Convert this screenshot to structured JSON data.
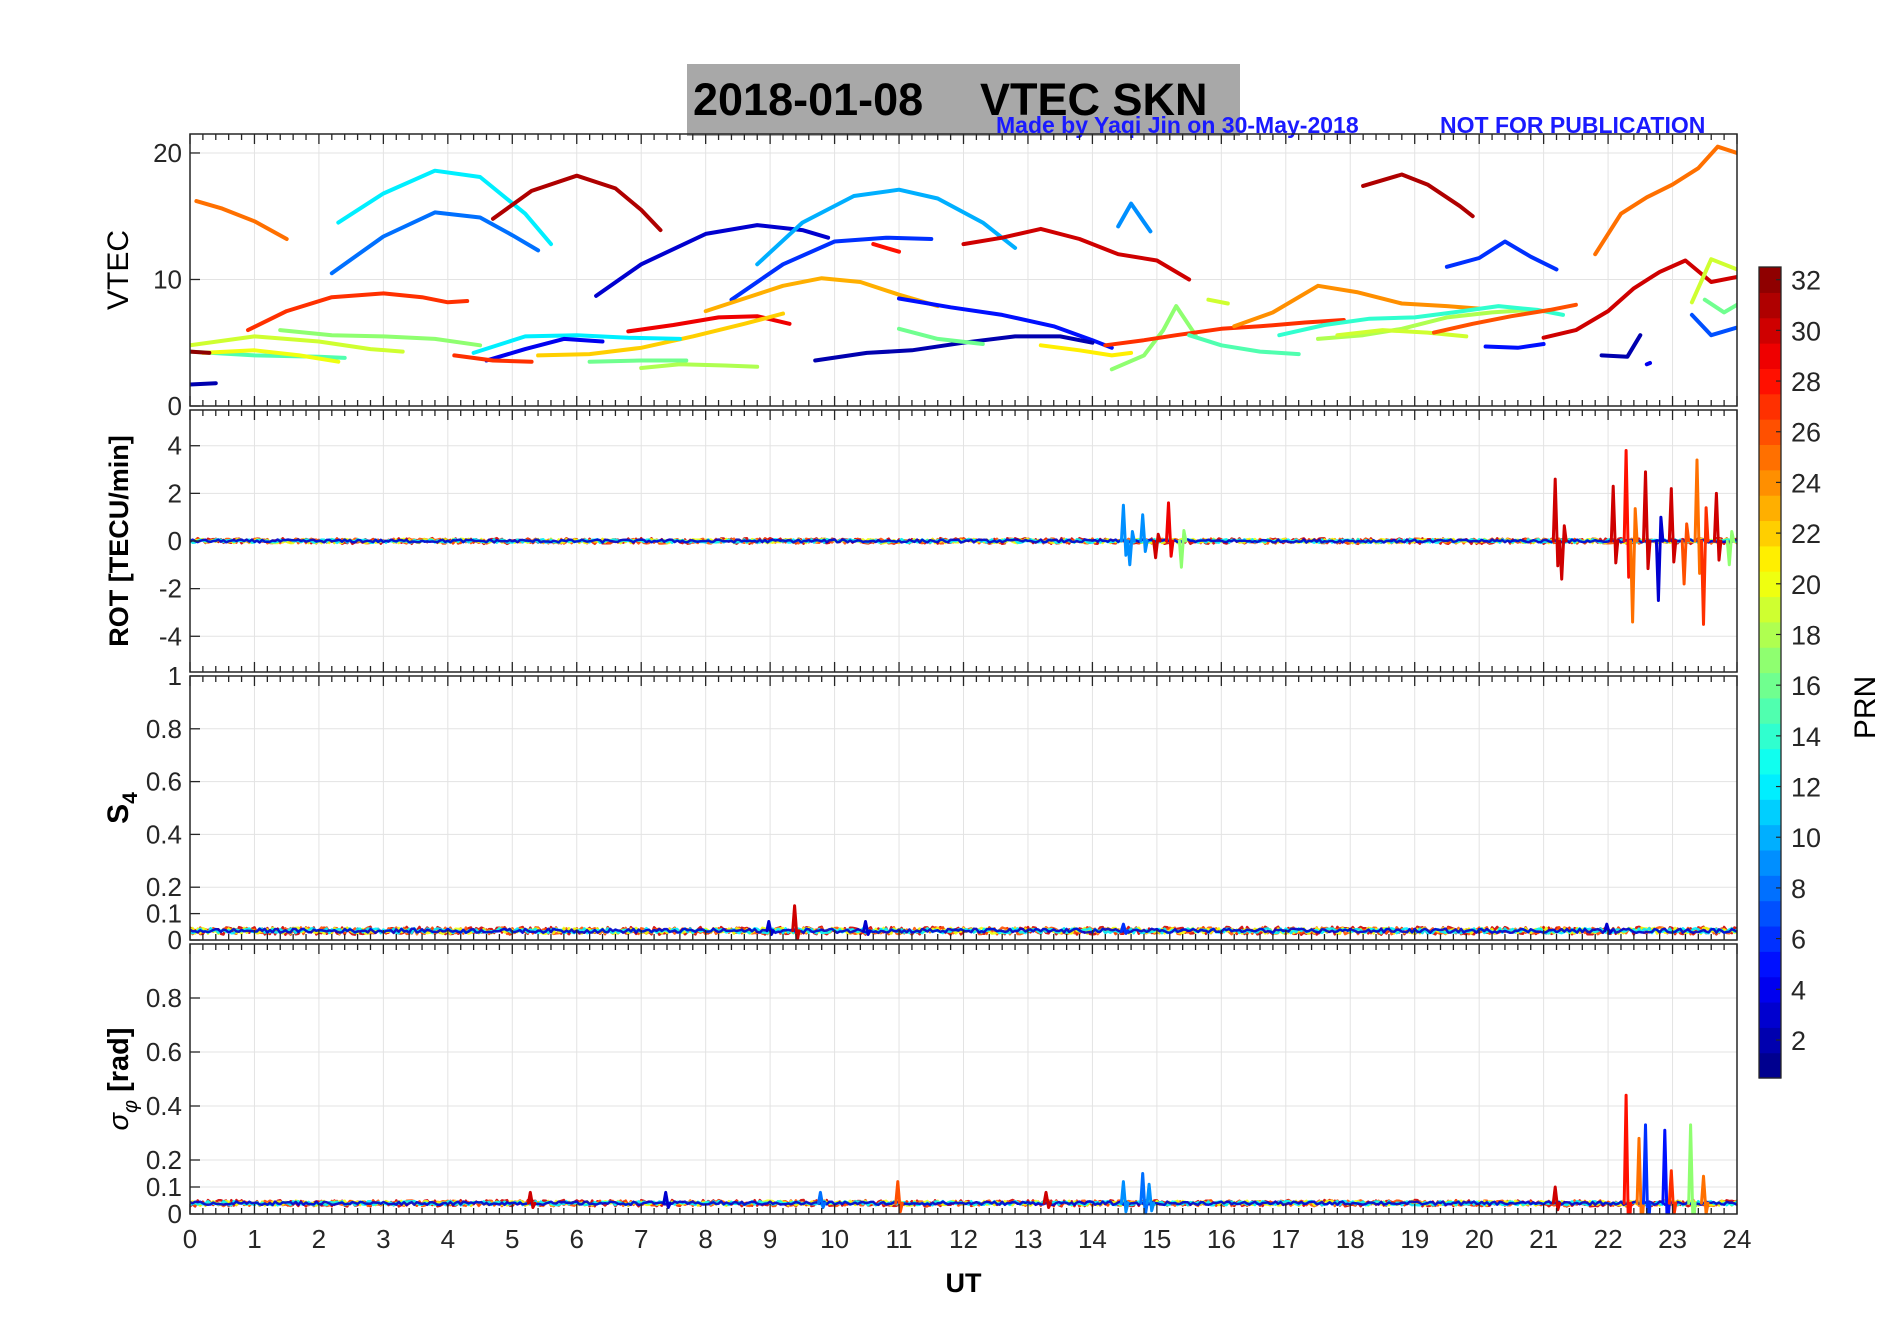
{
  "figure": {
    "title_date": "2018-01-08",
    "title_kind": "VTEC  SKN",
    "credit": "Made by Yaqi Jin on 30-May-2018",
    "notice": "NOT FOR PUBLICATION",
    "credit_color": "#1a1aff",
    "title_bg": "#a8a8a8"
  },
  "chart_data": [
    {
      "type": "line",
      "panel": "vtec",
      "ylabel": "VTEC",
      "ylim": [
        0,
        21.5
      ],
      "yticks": [
        "0",
        "10",
        "20"
      ],
      "ytick_values": [
        0,
        10,
        20
      ],
      "grid": true,
      "series": [
        {
          "prn": 25,
          "x": [
            0.1,
            0.5,
            1.0,
            1.5
          ],
          "y": [
            16.2,
            15.6,
            14.6,
            13.2
          ]
        },
        {
          "prn": 27,
          "x": [
            0.9,
            1.5,
            2.2,
            3.0,
            3.6,
            4.0,
            4.3
          ],
          "y": [
            6.0,
            7.5,
            8.6,
            8.9,
            8.6,
            8.2,
            8.3
          ]
        },
        {
          "prn": 12,
          "x": [
            2.3,
            3.0,
            3.8,
            4.5,
            5.2,
            5.6
          ],
          "y": [
            14.5,
            16.8,
            18.6,
            18.1,
            15.2,
            12.8
          ]
        },
        {
          "prn": 8,
          "x": [
            2.2,
            3.0,
            3.8,
            4.5,
            5.0,
            5.4
          ],
          "y": [
            10.5,
            13.4,
            15.3,
            14.9,
            13.5,
            12.3
          ]
        },
        {
          "prn": 31,
          "x": [
            4.7,
            5.3,
            6.0,
            6.6,
            7.0,
            7.3
          ],
          "y": [
            14.8,
            17.0,
            18.2,
            17.2,
            15.5,
            13.9
          ]
        },
        {
          "prn": 3,
          "x": [
            6.3,
            7.0,
            8.0,
            8.8,
            9.5,
            9.9
          ],
          "y": [
            8.7,
            11.2,
            13.6,
            14.3,
            13.9,
            13.3
          ]
        },
        {
          "prn": 6,
          "x": [
            8.4,
            9.2,
            10.0,
            10.8,
            11.5
          ],
          "y": [
            8.4,
            11.2,
            13.0,
            13.3,
            13.2
          ]
        },
        {
          "prn": 10,
          "x": [
            8.8,
            9.5,
            10.3,
            11.0,
            11.6,
            12.3,
            12.8
          ],
          "y": [
            11.2,
            14.5,
            16.6,
            17.1,
            16.4,
            14.5,
            12.5
          ]
        },
        {
          "prn": 28,
          "x": [
            10.6,
            11.0
          ],
          "y": [
            12.8,
            12.2
          ]
        },
        {
          "prn": 30,
          "x": [
            12.0,
            12.6,
            13.2,
            13.8,
            14.4,
            15.0,
            15.5
          ],
          "y": [
            12.8,
            13.3,
            14.0,
            13.2,
            12.0,
            11.5,
            10.0
          ]
        },
        {
          "prn": 9,
          "x": [
            14.4,
            14.6,
            14.9
          ],
          "y": [
            14.2,
            16.0,
            13.8
          ]
        },
        {
          "prn": 31,
          "x": [
            18.2,
            18.8,
            19.2,
            19.7,
            19.9
          ],
          "y": [
            17.4,
            18.3,
            17.5,
            15.8,
            15.0
          ]
        },
        {
          "prn": 6,
          "x": [
            19.5,
            20.0,
            20.4,
            20.8,
            21.2
          ],
          "y": [
            11.0,
            11.7,
            13.0,
            11.8,
            10.8
          ]
        },
        {
          "prn": 25,
          "x": [
            21.8,
            22.2,
            22.6,
            23.0,
            23.4,
            23.7,
            24.0
          ],
          "y": [
            12.0,
            15.2,
            16.5,
            17.5,
            18.8,
            20.5,
            20.0
          ]
        },
        {
          "prn": 30,
          "x": [
            21.0,
            21.5,
            22.0,
            22.4,
            22.8,
            23.2,
            23.6,
            24.0
          ],
          "y": [
            5.4,
            6.0,
            7.5,
            9.3,
            10.6,
            11.5,
            9.8,
            10.2
          ]
        },
        {
          "prn": 23,
          "x": [
            8.0,
            8.6,
            9.2,
            9.8,
            10.4,
            11.0,
            11.6
          ],
          "y": [
            7.5,
            8.5,
            9.5,
            10.1,
            9.8,
            8.8,
            7.9
          ]
        },
        {
          "prn": 5,
          "x": [
            11.0,
            11.8,
            12.6,
            13.4,
            14.0,
            14.3
          ],
          "y": [
            8.5,
            7.8,
            7.2,
            6.3,
            5.2,
            4.6
          ]
        },
        {
          "prn": 29,
          "x": [
            6.8,
            7.5,
            8.2,
            8.8,
            9.3
          ],
          "y": [
            5.9,
            6.4,
            7.0,
            7.1,
            6.5
          ]
        },
        {
          "prn": 22,
          "x": [
            5.4,
            6.2,
            7.0,
            7.8,
            8.6,
            9.2
          ],
          "y": [
            4.0,
            4.1,
            4.6,
            5.5,
            6.5,
            7.3
          ]
        },
        {
          "prn": 2,
          "x": [
            9.7,
            10.5,
            11.2,
            12.0,
            12.8,
            13.5,
            14.0
          ],
          "y": [
            3.6,
            4.2,
            4.4,
            5.0,
            5.5,
            5.5,
            5.0
          ]
        },
        {
          "prn": 12,
          "x": [
            4.4,
            5.2,
            6.0,
            6.8,
            7.6
          ],
          "y": [
            4.2,
            5.5,
            5.6,
            5.4,
            5.3
          ]
        },
        {
          "prn": 19,
          "x": [
            0.0,
            1.0,
            2.0,
            2.8,
            3.3
          ],
          "y": [
            4.8,
            5.5,
            5.1,
            4.5,
            4.3
          ]
        },
        {
          "prn": 15,
          "x": [
            0.0,
            1.0,
            2.0,
            2.4
          ],
          "y": [
            4.3,
            4.0,
            3.9,
            3.8
          ]
        },
        {
          "prn": 20,
          "x": [
            0.2,
            1.0,
            1.7,
            2.3
          ],
          "y": [
            4.2,
            4.4,
            4.0,
            3.5
          ]
        },
        {
          "prn": 17,
          "x": [
            1.4,
            2.2,
            3.0,
            3.8,
            4.5
          ],
          "y": [
            6.0,
            5.6,
            5.5,
            5.3,
            4.8
          ]
        },
        {
          "prn": 4,
          "x": [
            4.6,
            5.2,
            5.8,
            6.4
          ],
          "y": [
            3.6,
            4.5,
            5.3,
            5.1
          ]
        },
        {
          "prn": 2,
          "x": [
            0.0,
            0.4
          ],
          "y": [
            1.7,
            1.8
          ]
        },
        {
          "prn": 32,
          "x": [
            0.0,
            0.3
          ],
          "y": [
            4.3,
            4.2
          ]
        },
        {
          "prn": 27,
          "x": [
            4.1,
            4.7,
            5.3
          ],
          "y": [
            4.0,
            3.6,
            3.5
          ]
        },
        {
          "prn": 18,
          "x": [
            7.0,
            7.6,
            8.3,
            8.8
          ],
          "y": [
            3.0,
            3.3,
            3.2,
            3.1
          ]
        },
        {
          "prn": 16,
          "x": [
            6.2,
            7.0,
            7.7
          ],
          "y": [
            3.5,
            3.6,
            3.6
          ]
        },
        {
          "prn": 16,
          "x": [
            11.0,
            11.6,
            12.3
          ],
          "y": [
            6.1,
            5.3,
            4.9
          ]
        },
        {
          "prn": 21,
          "x": [
            13.2,
            13.8,
            14.3,
            14.6
          ],
          "y": [
            4.8,
            4.4,
            4.0,
            4.2
          ]
        },
        {
          "prn": 17,
          "x": [
            14.3,
            14.8,
            15.1,
            15.3,
            15.6
          ],
          "y": [
            2.9,
            4.0,
            6.0,
            7.9,
            5.6
          ]
        },
        {
          "prn": 27,
          "x": [
            14.2,
            14.8,
            15.3,
            16.0,
            16.6,
            17.3,
            17.9
          ],
          "y": [
            4.8,
            5.2,
            5.6,
            6.1,
            6.3,
            6.6,
            6.8
          ]
        },
        {
          "prn": 15,
          "x": [
            15.5,
            16.0,
            16.6,
            17.2
          ],
          "y": [
            5.6,
            4.8,
            4.3,
            4.1
          ]
        },
        {
          "prn": 19,
          "x": [
            15.8,
            16.1
          ],
          "y": [
            8.4,
            8.1
          ]
        },
        {
          "prn": 24,
          "x": [
            16.2,
            16.8,
            17.5,
            18.1,
            18.8,
            19.5,
            20.0
          ],
          "y": [
            6.3,
            7.4,
            9.5,
            9.0,
            8.1,
            7.9,
            7.7
          ]
        },
        {
          "prn": 18,
          "x": [
            17.5,
            18.2,
            18.8,
            19.5,
            20.2,
            20.8
          ],
          "y": [
            5.3,
            5.6,
            6.1,
            7.0,
            7.4,
            7.6
          ]
        },
        {
          "prn": 14,
          "x": [
            16.9,
            17.6,
            18.3,
            19.0,
            19.6,
            20.3,
            20.9,
            21.3
          ],
          "y": [
            5.6,
            6.4,
            6.9,
            7.0,
            7.4,
            7.9,
            7.6,
            7.2
          ]
        },
        {
          "prn": 19,
          "x": [
            17.8,
            18.5,
            19.2,
            19.8
          ],
          "y": [
            5.6,
            6.0,
            5.8,
            5.5
          ]
        },
        {
          "prn": 26,
          "x": [
            19.3,
            19.9,
            20.5,
            21.1,
            21.5
          ],
          "y": [
            5.8,
            6.5,
            7.1,
            7.6,
            8.0
          ]
        },
        {
          "prn": 5,
          "x": [
            20.1,
            20.6,
            21.0
          ],
          "y": [
            4.7,
            4.6,
            4.9
          ]
        },
        {
          "prn": 2,
          "x": [
            21.9,
            22.3,
            22.5
          ],
          "y": [
            4.0,
            3.9,
            5.6
          ]
        },
        {
          "prn": 4,
          "x": [
            22.6,
            22.65
          ],
          "y": [
            3.3,
            3.4
          ]
        },
        {
          "prn": 7,
          "x": [
            23.3,
            23.6,
            24.0
          ],
          "y": [
            7.2,
            5.6,
            6.2
          ]
        },
        {
          "prn": 19,
          "x": [
            23.3,
            23.6,
            24.0
          ],
          "y": [
            8.2,
            11.6,
            10.8
          ]
        },
        {
          "prn": 16,
          "x": [
            23.5,
            23.8,
            24.0
          ],
          "y": [
            8.4,
            7.4,
            8.0
          ]
        }
      ]
    },
    {
      "type": "line",
      "panel": "rot",
      "ylabel": "ROT [TECU/min]",
      "ylim": [
        -5.5,
        5.5
      ],
      "yticks": [
        "-4",
        "-2",
        "0",
        "2",
        "4"
      ],
      "ytick_values": [
        -4,
        -2,
        0,
        2,
        4
      ],
      "grid": true,
      "baseline": 0,
      "noise": 0.12,
      "spikes": [
        {
          "x": 14.5,
          "y": 1.5,
          "prn": 9
        },
        {
          "x": 14.6,
          "y": -1.0,
          "prn": 9
        },
        {
          "x": 14.8,
          "y": 1.1,
          "prn": 9
        },
        {
          "x": 15.0,
          "y": -0.7,
          "prn": 30
        },
        {
          "x": 15.2,
          "y": 1.6,
          "prn": 29
        },
        {
          "x": 15.4,
          "y": -1.1,
          "prn": 17
        },
        {
          "x": 21.2,
          "y": 2.6,
          "prn": 30
        },
        {
          "x": 21.3,
          "y": -1.6,
          "prn": 30
        },
        {
          "x": 22.1,
          "y": 2.3,
          "prn": 30
        },
        {
          "x": 22.3,
          "y": 3.8,
          "prn": 28
        },
        {
          "x": 22.4,
          "y": -3.4,
          "prn": 25
        },
        {
          "x": 22.6,
          "y": 2.9,
          "prn": 30
        },
        {
          "x": 22.8,
          "y": -2.5,
          "prn": 3
        },
        {
          "x": 23.0,
          "y": 2.2,
          "prn": 30
        },
        {
          "x": 23.2,
          "y": -1.8,
          "prn": 26
        },
        {
          "x": 23.4,
          "y": 3.4,
          "prn": 25
        },
        {
          "x": 23.5,
          "y": -3.5,
          "prn": 27
        },
        {
          "x": 23.7,
          "y": 2.0,
          "prn": 30
        },
        {
          "x": 23.9,
          "y": -1.0,
          "prn": 17
        }
      ]
    },
    {
      "type": "line",
      "panel": "s4",
      "ylabel": "S4",
      "ylim": [
        0,
        1.0
      ],
      "yticks": [
        "0",
        "0.1",
        "0.2",
        "0.4",
        "0.6",
        "0.8",
        "1"
      ],
      "ytick_values": [
        0,
        0.1,
        0.2,
        0.4,
        0.6,
        0.8,
        1.0
      ],
      "grid": true,
      "baseline": 0.035,
      "noise": 0.015,
      "spikes": [
        {
          "x": 9.4,
          "y": 0.13,
          "prn": 30
        },
        {
          "x": 9.0,
          "y": 0.07,
          "prn": 3
        },
        {
          "x": 10.5,
          "y": 0.07,
          "prn": 3
        },
        {
          "x": 14.5,
          "y": 0.06,
          "prn": 6
        },
        {
          "x": 22.0,
          "y": 0.06,
          "prn": 3
        }
      ]
    },
    {
      "type": "line",
      "panel": "sigma_phi",
      "ylabel": "σφ [rad]",
      "ylim": [
        0,
        1.0
      ],
      "yticks": [
        "0",
        "0.1",
        "0.2",
        "0.4",
        "0.6",
        "0.8"
      ],
      "ytick_values": [
        0,
        0.1,
        0.2,
        0.4,
        0.6,
        0.8
      ],
      "grid": true,
      "baseline": 0.04,
      "noise": 0.012,
      "spikes": [
        {
          "x": 5.3,
          "y": 0.08,
          "prn": 30
        },
        {
          "x": 7.4,
          "y": 0.08,
          "prn": 3
        },
        {
          "x": 9.8,
          "y": 0.08,
          "prn": 8
        },
        {
          "x": 11.0,
          "y": 0.12,
          "prn": 26
        },
        {
          "x": 13.3,
          "y": 0.08,
          "prn": 30
        },
        {
          "x": 14.5,
          "y": 0.12,
          "prn": 9
        },
        {
          "x": 14.8,
          "y": 0.15,
          "prn": 8
        },
        {
          "x": 14.9,
          "y": 0.11,
          "prn": 9
        },
        {
          "x": 21.2,
          "y": 0.1,
          "prn": 30
        },
        {
          "x": 22.3,
          "y": 0.44,
          "prn": 28
        },
        {
          "x": 22.5,
          "y": 0.28,
          "prn": 25
        },
        {
          "x": 22.6,
          "y": 0.33,
          "prn": 6
        },
        {
          "x": 22.9,
          "y": 0.31,
          "prn": 5
        },
        {
          "x": 23.0,
          "y": 0.16,
          "prn": 27
        },
        {
          "x": 23.3,
          "y": 0.33,
          "prn": 17
        },
        {
          "x": 23.5,
          "y": 0.14,
          "prn": 25
        }
      ]
    }
  ],
  "axes": {
    "xlabel": "UT",
    "xlim": [
      0,
      24
    ],
    "xticks": [
      "0",
      "1",
      "2",
      "3",
      "4",
      "5",
      "6",
      "7",
      "8",
      "9",
      "10",
      "11",
      "12",
      "13",
      "14",
      "15",
      "16",
      "17",
      "18",
      "19",
      "20",
      "21",
      "22",
      "23",
      "24"
    ],
    "xtick_values": [
      0,
      1,
      2,
      3,
      4,
      5,
      6,
      7,
      8,
      9,
      10,
      11,
      12,
      13,
      14,
      15,
      16,
      17,
      18,
      19,
      20,
      21,
      22,
      23,
      24
    ]
  },
  "colorbar": {
    "label": "PRN",
    "range": [
      1,
      32
    ],
    "ticks": [
      "2",
      "4",
      "6",
      "8",
      "10",
      "12",
      "14",
      "16",
      "18",
      "20",
      "22",
      "24",
      "26",
      "28",
      "30",
      "32"
    ],
    "tick_values": [
      2,
      4,
      6,
      8,
      10,
      12,
      14,
      16,
      18,
      20,
      22,
      24,
      26,
      28,
      30,
      32
    ],
    "colormap": "jet"
  }
}
